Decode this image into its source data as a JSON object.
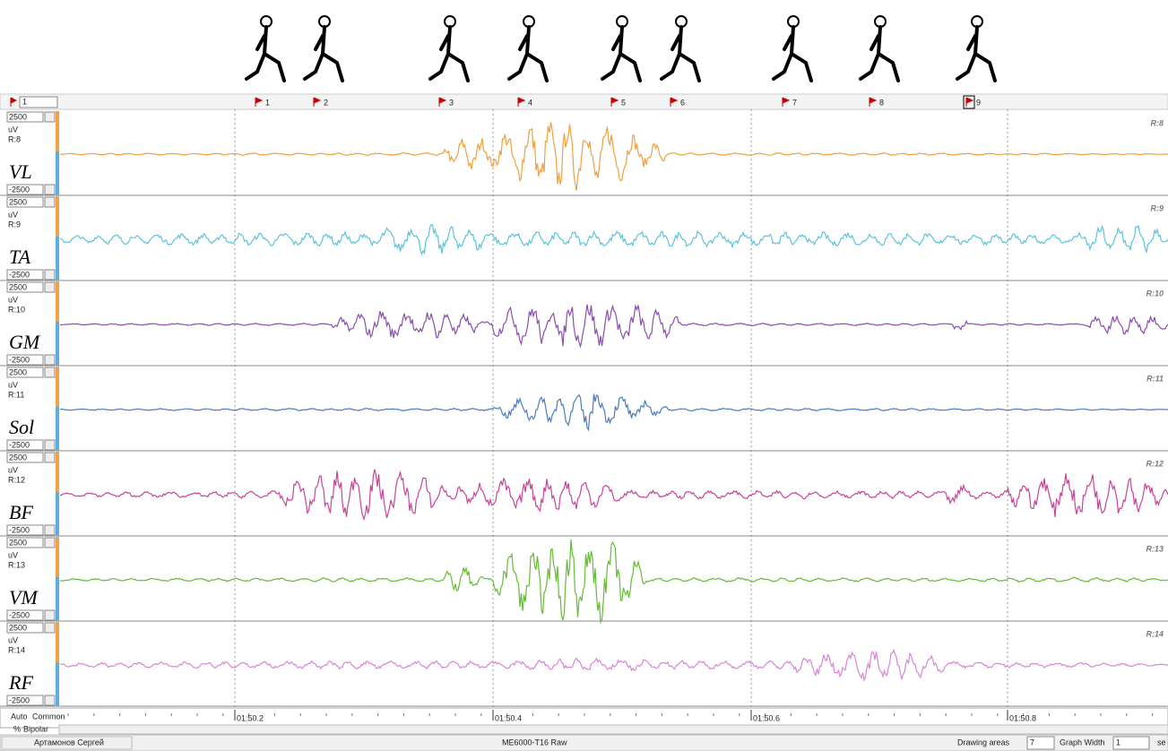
{
  "toolbar": {
    "marker_select": "1"
  },
  "markers": [
    "1",
    "2",
    "3",
    "4",
    "5",
    "6",
    "7",
    "8",
    "9"
  ],
  "channels": [
    {
      "name": "VL",
      "max": "2500",
      "unit": "uV",
      "id": "R:8",
      "min": "-2500",
      "color": "#f0a040"
    },
    {
      "name": "TA",
      "max": "2500",
      "unit": "uV",
      "id": "R:9",
      "min": "-2500",
      "color": "#5cc4da"
    },
    {
      "name": "GM",
      "max": "2500",
      "unit": "uV",
      "id": "R:10",
      "min": "-2500",
      "color": "#8a4fae"
    },
    {
      "name": "Sol",
      "max": "2500",
      "unit": "uV",
      "id": "R:11",
      "min": "-2500",
      "color": "#4a7cbf"
    },
    {
      "name": "BF",
      "max": "2500",
      "unit": "uV",
      "id": "R:12",
      "min": "-2500",
      "color": "#c8449a"
    },
    {
      "name": "VM",
      "max": "2500",
      "unit": "uV",
      "id": "R:13",
      "min": "-2500",
      "color": "#66bb38"
    },
    {
      "name": "RF",
      "max": "2500",
      "unit": "uV",
      "id": "R:14",
      "min": "-2500",
      "color": "#d886d6"
    }
  ],
  "time_labels": [
    "01:50.2",
    "01:50.4",
    "01:50.6",
    "01:50.8"
  ],
  "mode_tabs": {
    "auto": "Auto",
    "common": "Common",
    "percent": "%",
    "bipolar": "Bipolar"
  },
  "status": {
    "user": "Артамонов Сергей",
    "source": "ME6000-T16 Raw",
    "drawing_areas_label": "Drawing areas",
    "drawing_areas": "7",
    "graph_width_label": "Graph Width",
    "graph_width": "1",
    "unit": "se"
  }
}
